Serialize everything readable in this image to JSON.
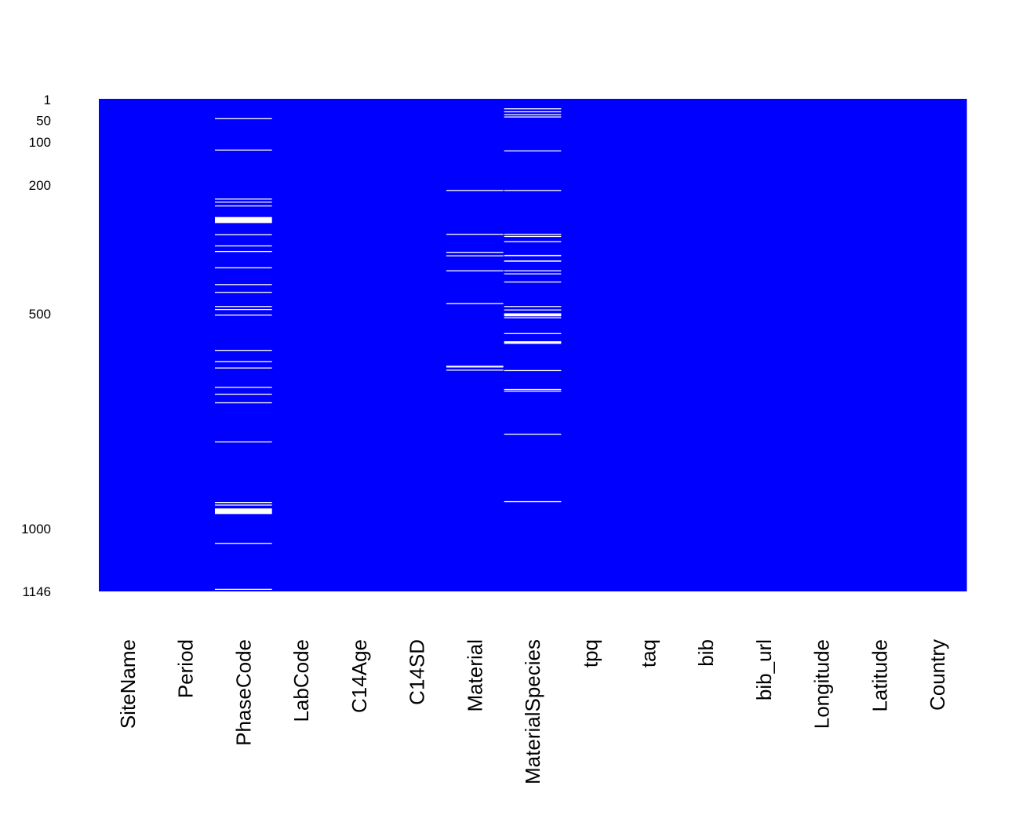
{
  "chart_data": {
    "type": "heatmap",
    "title": "",
    "xlabel": "",
    "ylabel": "",
    "n_rows": 1146,
    "columns": [
      "SiteName",
      "Period",
      "PhaseCode",
      "LabCode",
      "C14Age",
      "C14SD",
      "Material",
      "MaterialSpecies",
      "tpq",
      "taq",
      "bib",
      "bib_url",
      "Longitude",
      "Latitude",
      "Country"
    ],
    "yticks": [
      1,
      50,
      100,
      200,
      500,
      1000,
      1146
    ],
    "present_color": "#0000ff",
    "missing_color": "#ffffff",
    "missing": {
      "PhaseCode": [
        [
          46,
          46
        ],
        [
          119,
          119
        ],
        [
          233,
          233
        ],
        [
          240,
          240
        ],
        [
          249,
          249
        ],
        [
          276,
          289
        ],
        [
          316,
          316
        ],
        [
          342,
          342
        ],
        [
          355,
          355
        ],
        [
          393,
          393
        ],
        [
          432,
          432
        ],
        [
          450,
          450
        ],
        [
          483,
          483
        ],
        [
          490,
          491
        ],
        [
          503,
          503
        ],
        [
          585,
          585
        ],
        [
          611,
          611
        ],
        [
          626,
          626
        ],
        [
          671,
          671
        ],
        [
          687,
          687
        ],
        [
          707,
          707
        ],
        [
          798,
          798
        ],
        [
          939,
          940
        ],
        [
          945,
          946
        ],
        [
          954,
          966
        ],
        [
          1034,
          1034
        ],
        [
          1141,
          1142
        ]
      ],
      "Material": [
        [
          213,
          213
        ],
        [
          315,
          315
        ],
        [
          357,
          357
        ],
        [
          365,
          365
        ],
        [
          400,
          400
        ],
        [
          476,
          476
        ],
        [
          622,
          625
        ],
        [
          631,
          631
        ]
      ],
      "MaterialSpecies": [
        [
          23,
          24
        ],
        [
          30,
          31
        ],
        [
          37,
          38
        ],
        [
          42,
          43
        ],
        [
          121,
          121
        ],
        [
          213,
          213
        ],
        [
          315,
          315
        ],
        [
          320,
          321
        ],
        [
          332,
          332
        ],
        [
          364,
          366
        ],
        [
          377,
          379
        ],
        [
          400,
          400
        ],
        [
          407,
          407
        ],
        [
          426,
          426
        ],
        [
          483,
          484
        ],
        [
          491,
          492
        ],
        [
          500,
          506
        ],
        [
          509,
          510
        ],
        [
          546,
          546
        ],
        [
          565,
          570
        ],
        [
          632,
          632
        ],
        [
          676,
          676
        ],
        [
          680,
          681
        ],
        [
          780,
          780
        ],
        [
          937,
          937
        ]
      ]
    }
  }
}
